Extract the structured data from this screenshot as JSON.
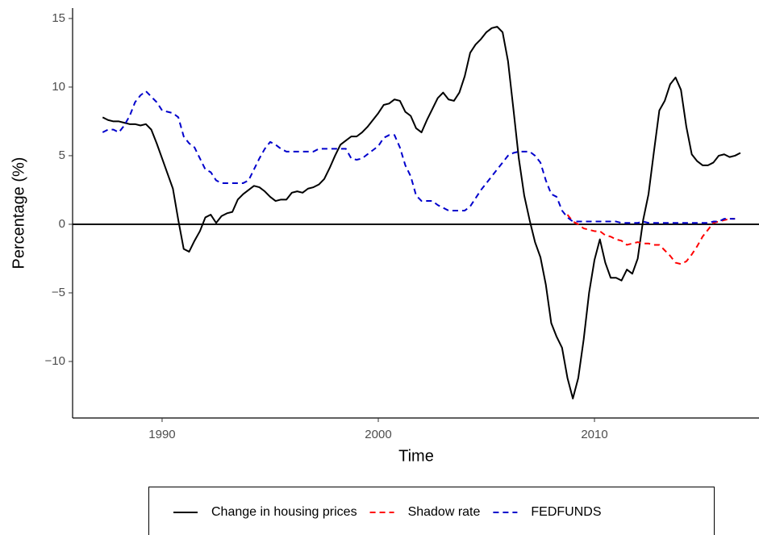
{
  "chart_data": {
    "type": "line",
    "x_label": "Time",
    "y_label": "Percentage (%)",
    "xlim": [
      1985.86,
      2017.61
    ],
    "ylim": [
      -14.12,
      15.76
    ],
    "xticks": [
      1990,
      2000,
      2010
    ],
    "yticks": [
      {
        "value": -10,
        "label": "−10"
      },
      {
        "value": -5,
        "label": "−5"
      },
      0,
      5,
      10,
      15
    ],
    "hline": 0,
    "grid": false,
    "legend": "bottom",
    "series": [
      {
        "name": "Change in housing prices",
        "color": "#000000",
        "dash": false,
        "x": [
          1987.25,
          1987.5,
          1987.75,
          1988,
          1988.25,
          1988.5,
          1988.75,
          1989,
          1989.25,
          1989.5,
          1989.75,
          1990,
          1990.25,
          1990.5,
          1990.75,
          1991,
          1991.25,
          1991.5,
          1991.75,
          1992,
          1992.25,
          1992.5,
          1992.75,
          1993,
          1993.25,
          1993.5,
          1993.75,
          1994,
          1994.25,
          1994.5,
          1994.75,
          1995,
          1995.25,
          1995.5,
          1995.75,
          1996,
          1996.25,
          1996.5,
          1996.75,
          1997,
          1997.25,
          1997.5,
          1997.75,
          1998,
          1998.25,
          1998.5,
          1998.75,
          1999,
          1999.25,
          1999.5,
          1999.75,
          2000,
          2000.25,
          2000.5,
          2000.75,
          2001,
          2001.25,
          2001.5,
          2001.75,
          2002,
          2002.25,
          2002.5,
          2002.75,
          2003,
          2003.25,
          2003.5,
          2003.75,
          2004,
          2004.25,
          2004.5,
          2004.75,
          2005,
          2005.25,
          2005.5,
          2005.75,
          2006,
          2006.25,
          2006.5,
          2006.75,
          2007,
          2007.25,
          2007.5,
          2007.75,
          2008,
          2008.25,
          2008.5,
          2008.75,
          2009,
          2009.25,
          2009.5,
          2009.75,
          2010,
          2010.25,
          2010.5,
          2010.75,
          2011,
          2011.25,
          2011.5,
          2011.75,
          2012,
          2012.25,
          2012.5,
          2012.75,
          2013,
          2013.25,
          2013.5,
          2013.75,
          2014,
          2014.25,
          2014.5,
          2014.75,
          2015,
          2015.25,
          2015.5,
          2015.75,
          2016,
          2016.25,
          2016.5,
          2016.75
        ],
        "values": [
          7.8,
          7.6,
          7.5,
          7.5,
          7.4,
          7.3,
          7.3,
          7.2,
          7.3,
          6.9,
          5.9,
          4.8,
          3.7,
          2.6,
          0.3,
          -1.8,
          -2.0,
          -1.2,
          -0.5,
          0.5,
          0.7,
          0.1,
          0.6,
          0.8,
          0.9,
          1.8,
          2.2,
          2.5,
          2.8,
          2.7,
          2.4,
          2.0,
          1.7,
          1.8,
          1.8,
          2.3,
          2.4,
          2.3,
          2.6,
          2.7,
          2.9,
          3.3,
          4.1,
          5.0,
          5.8,
          6.1,
          6.4,
          6.4,
          6.7,
          7.1,
          7.6,
          8.1,
          8.7,
          8.8,
          9.1,
          9.0,
          8.2,
          7.9,
          7.0,
          6.7,
          7.6,
          8.4,
          9.2,
          9.6,
          9.1,
          9.0,
          9.6,
          10.8,
          12.5,
          13.1,
          13.5,
          14.0,
          14.3,
          14.4,
          14.0,
          11.9,
          8.4,
          4.8,
          2.1,
          0.3,
          -1.3,
          -2.4,
          -4.4,
          -7.2,
          -8.2,
          -9.0,
          -11.2,
          -12.7,
          -11.2,
          -8.4,
          -5.0,
          -2.6,
          -1.1,
          -2.8,
          -3.9,
          -3.9,
          -4.1,
          -3.3,
          -3.6,
          -2.5,
          0.3,
          2.2,
          5.3,
          8.3,
          9.0,
          10.2,
          10.7,
          9.8,
          7.1,
          5.1,
          4.6,
          4.3,
          4.3,
          4.5,
          5.0,
          5.1,
          4.9,
          5.0,
          5.2
        ]
      },
      {
        "name": "Shadow rate",
        "color": "#ff0000",
        "dash": true,
        "x": [
          2008.75,
          2009,
          2009.25,
          2009.5,
          2009.75,
          2010,
          2010.25,
          2010.5,
          2010.75,
          2011,
          2011.25,
          2011.5,
          2011.75,
          2012,
          2012.25,
          2012.5,
          2012.75,
          2013,
          2013.25,
          2013.5,
          2013.75,
          2014,
          2014.25,
          2014.5,
          2014.75,
          2015,
          2015.25,
          2015.5,
          2015.75,
          2016,
          2016.25,
          2016.5
        ],
        "values": [
          0.7,
          0.2,
          0.0,
          -0.3,
          -0.4,
          -0.5,
          -0.5,
          -0.8,
          -0.9,
          -1.1,
          -1.2,
          -1.5,
          -1.4,
          -1.3,
          -1.4,
          -1.4,
          -1.5,
          -1.5,
          -1.9,
          -2.3,
          -2.8,
          -2.9,
          -2.7,
          -2.2,
          -1.6,
          -0.9,
          -0.4,
          0.1,
          0.2,
          0.3,
          0.4,
          0.4
        ]
      },
      {
        "name": "FEDFUNDS",
        "color": "#0000cc",
        "dash": true,
        "x": [
          1987.25,
          1987.5,
          1987.75,
          1988,
          1988.25,
          1988.5,
          1988.75,
          1989,
          1989.25,
          1989.5,
          1989.75,
          1990,
          1990.25,
          1990.5,
          1990.75,
          1991,
          1991.25,
          1991.5,
          1991.75,
          1992,
          1992.25,
          1992.5,
          1992.75,
          1993,
          1993.25,
          1993.5,
          1993.75,
          1994,
          1994.25,
          1994.5,
          1994.75,
          1995,
          1995.25,
          1995.5,
          1995.75,
          1996,
          1996.25,
          1996.5,
          1996.75,
          1997,
          1997.25,
          1997.5,
          1997.75,
          1998,
          1998.25,
          1998.5,
          1998.75,
          1999,
          1999.25,
          1999.5,
          1999.75,
          2000,
          2000.25,
          2000.5,
          2000.75,
          2001,
          2001.25,
          2001.5,
          2001.75,
          2002,
          2002.25,
          2002.5,
          2002.75,
          2003,
          2003.25,
          2003.5,
          2003.75,
          2004,
          2004.25,
          2004.5,
          2004.75,
          2005,
          2005.25,
          2005.5,
          2005.75,
          2006,
          2006.25,
          2006.5,
          2006.75,
          2007,
          2007.25,
          2007.5,
          2007.75,
          2008,
          2008.25,
          2008.5,
          2008.75,
          2009,
          2009.25,
          2009.5,
          2009.75,
          2010,
          2010.25,
          2010.5,
          2010.75,
          2011,
          2011.25,
          2011.5,
          2011.75,
          2012,
          2012.25,
          2012.5,
          2012.75,
          2013,
          2013.25,
          2013.5,
          2013.75,
          2014,
          2014.25,
          2014.5,
          2014.75,
          2015,
          2015.25,
          2015.5,
          2015.75,
          2016,
          2016.25,
          2016.5
        ],
        "values": [
          6.7,
          6.9,
          6.9,
          6.7,
          7.2,
          7.9,
          8.9,
          9.4,
          9.7,
          9.3,
          8.9,
          8.3,
          8.2,
          8.1,
          7.8,
          6.4,
          5.9,
          5.6,
          4.8,
          4.0,
          3.8,
          3.2,
          3.0,
          3.0,
          3.0,
          3.0,
          3.0,
          3.2,
          4.0,
          4.8,
          5.5,
          6.0,
          5.8,
          5.5,
          5.3,
          5.3,
          5.3,
          5.3,
          5.3,
          5.3,
          5.5,
          5.5,
          5.5,
          5.5,
          5.5,
          5.5,
          4.8,
          4.7,
          4.8,
          5.1,
          5.4,
          5.7,
          6.3,
          6.5,
          6.5,
          5.6,
          4.3,
          3.5,
          2.1,
          1.7,
          1.7,
          1.7,
          1.4,
          1.2,
          1.0,
          1.0,
          1.0,
          1.0,
          1.3,
          1.9,
          2.5,
          3.0,
          3.5,
          4.0,
          4.5,
          5.0,
          5.2,
          5.3,
          5.3,
          5.3,
          5.0,
          4.5,
          3.2,
          2.2,
          2.0,
          1.0,
          0.5,
          0.2,
          0.2,
          0.2,
          0.2,
          0.2,
          0.2,
          0.2,
          0.2,
          0.2,
          0.1,
          0.1,
          0.1,
          0.1,
          0.2,
          0.1,
          0.1,
          0.1,
          0.1,
          0.1,
          0.1,
          0.1,
          0.1,
          0.1,
          0.1,
          0.1,
          0.1,
          0.2,
          0.2,
          0.4,
          0.4,
          0.4
        ]
      }
    ]
  }
}
